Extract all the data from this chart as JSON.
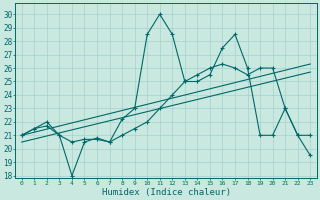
{
  "xlabel": "Humidex (Indice chaleur)",
  "bg_color": "#c8e8e0",
  "grid_color": "#a8d0cc",
  "line_color": "#006868",
  "xlim": [
    -0.5,
    23.5
  ],
  "ylim": [
    17.8,
    30.8
  ],
  "yticks": [
    18,
    19,
    20,
    21,
    22,
    23,
    24,
    25,
    26,
    27,
    28,
    29,
    30
  ],
  "xticks": [
    0,
    1,
    2,
    3,
    4,
    5,
    6,
    7,
    8,
    9,
    10,
    11,
    12,
    13,
    14,
    15,
    16,
    17,
    18,
    19,
    20,
    21,
    22,
    23
  ],
  "line1_x": [
    0,
    1,
    2,
    3,
    4,
    5,
    6,
    7,
    8,
    9,
    10,
    11,
    12,
    13,
    14,
    15,
    16,
    17,
    18,
    19,
    20,
    21,
    22,
    23
  ],
  "line1_y": [
    21,
    21.5,
    21.7,
    21,
    18,
    20.5,
    20.8,
    20.5,
    22.2,
    23,
    28.5,
    30,
    28.5,
    25,
    25,
    25.5,
    27.5,
    28.5,
    26,
    21,
    21,
    23,
    21,
    19.5
  ],
  "line2_x": [
    0,
    1,
    2,
    3,
    4,
    5,
    6,
    7,
    8,
    9,
    10,
    11,
    12,
    13,
    14,
    15,
    16,
    17,
    18,
    19,
    20,
    21,
    22,
    23
  ],
  "line2_y": [
    21,
    21.5,
    22,
    21,
    20.5,
    20.7,
    20.7,
    20.5,
    21,
    21.5,
    22,
    23,
    24,
    25,
    25.5,
    26,
    26.3,
    26,
    25.5,
    26,
    26,
    23,
    21,
    21
  ],
  "trend1_x": [
    0,
    23
  ],
  "trend1_y": [
    21.0,
    26.3
  ],
  "trend2_x": [
    0,
    23
  ],
  "trend2_y": [
    20.5,
    25.7
  ]
}
